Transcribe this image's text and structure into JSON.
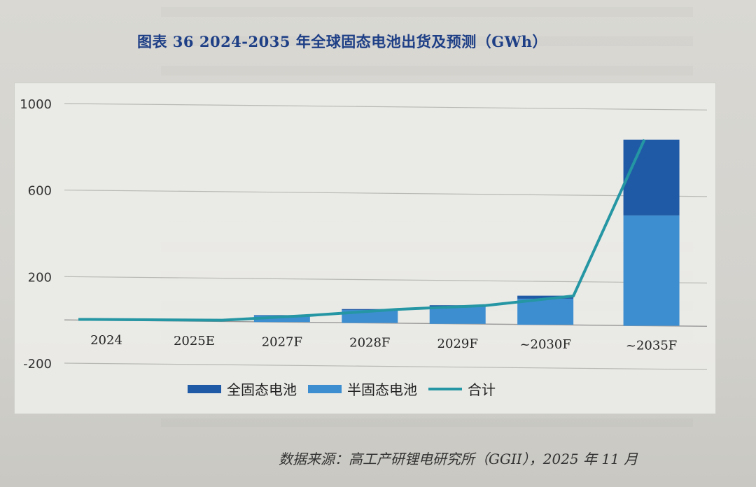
{
  "figure": {
    "title": "图表 36    2024-2035 年全球固态电池出货及预测（GWh）",
    "source": "数据来源：高工产研锂电研究所（GGII），2025 年 11 月"
  },
  "colors": {
    "all_solid": "#1f5aa6",
    "semi_solid": "#3d8ed1",
    "total": "#2596a3",
    "title": "#1e3f86",
    "grid": "#b8b8b4"
  },
  "chart_data": {
    "type": "bar",
    "stacked": true,
    "categories": [
      "2024",
      "2025E",
      "2027F",
      "2028F",
      "2029F",
      "~2030F",
      "~2035F"
    ],
    "series": [
      {
        "name": "全固态电池",
        "type": "bar",
        "values": [
          0,
          0,
          2,
          4,
          6,
          14,
          350
        ]
      },
      {
        "name": "半固态电池",
        "type": "bar",
        "values": [
          3,
          6,
          30,
          60,
          80,
          120,
          510
        ]
      },
      {
        "name": "合计",
        "type": "line",
        "values": [
          3,
          6,
          32,
          64,
          86,
          134,
          860
        ]
      }
    ],
    "y_ticks": [
      "1000",
      "600",
      "200",
      "-200"
    ],
    "y_tick_values": [
      1000,
      600,
      200,
      -200
    ],
    "ylim": [
      -200,
      1000
    ],
    "grid": true,
    "legend_position": "bottom"
  }
}
